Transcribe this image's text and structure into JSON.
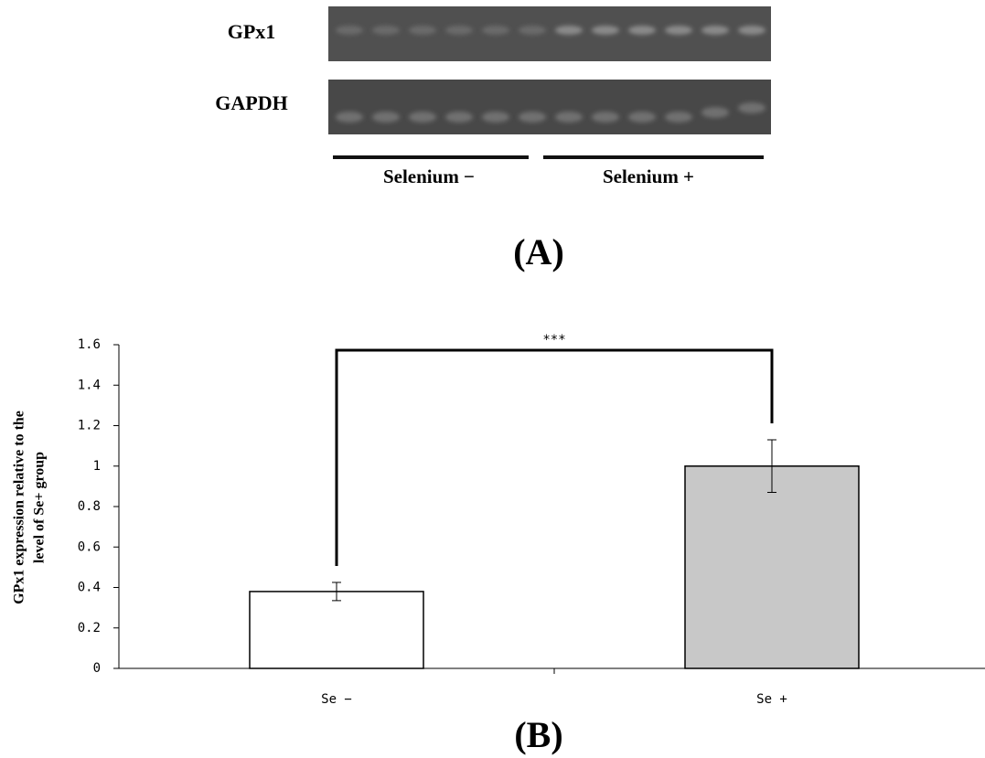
{
  "gel": {
    "rows": [
      "GPx1",
      "GAPDH"
    ],
    "groups": [
      "Selenium −",
      "Selenium +"
    ],
    "panel_label": "(A)"
  },
  "chart_data": {
    "type": "bar",
    "panel_label": "(B)",
    "ylabel": [
      "GPx1 expression relative to the",
      "level of Se+ group"
    ],
    "categories": [
      "Se −",
      "Se +"
    ],
    "values": [
      0.38,
      1.0
    ],
    "errors": [
      0.045,
      0.13
    ],
    "colors": [
      "#ffffff",
      "#c8c8c8"
    ],
    "annotation": "***",
    "ylim": [
      0,
      1.6
    ],
    "yticks": [
      0,
      0.2,
      0.4,
      0.6,
      0.8,
      1,
      1.2,
      1.4,
      1.6
    ],
    "grid": false
  }
}
